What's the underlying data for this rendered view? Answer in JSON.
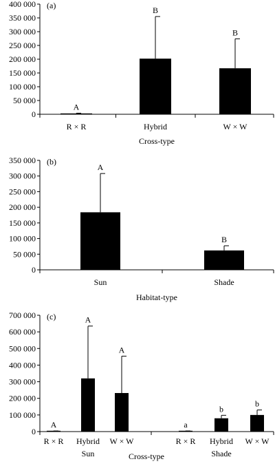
{
  "chart_data": [
    {
      "type": "bar",
      "panel_label": "(a)",
      "xlabel": "Cross-type",
      "ylim": [
        0,
        400000
      ],
      "yticks": [
        "0",
        "50 000",
        "100 000",
        "150 000",
        "200 000",
        "250 000",
        "300 000",
        "350 000",
        "400 000"
      ],
      "categories": [
        "R × R",
        "Hybrid",
        "W × W"
      ],
      "values": [
        3000,
        202000,
        167000
      ],
      "error": [
        1000,
        153000,
        107000
      ],
      "significance": [
        "A",
        "B",
        "B"
      ],
      "bar_color": "#000000"
    },
    {
      "type": "bar",
      "panel_label": "(b)",
      "xlabel": "Habitat-type",
      "ylim": [
        0,
        350000
      ],
      "yticks": [
        "0",
        "50 000",
        "100 000",
        "150 000",
        "200 000",
        "250 000",
        "300 000",
        "350 000"
      ],
      "categories": [
        "Sun",
        "Shade"
      ],
      "values": [
        184000,
        62000
      ],
      "error": [
        124000,
        15000
      ],
      "significance": [
        "A",
        "B"
      ],
      "bar_color": "#000000"
    },
    {
      "type": "bar",
      "panel_label": "(c)",
      "xlabel": "Cross-type",
      "ylim": [
        0,
        700000
      ],
      "yticks": [
        "0",
        "100 000",
        "200 000",
        "300 000",
        "400 000",
        "500 000",
        "600 000",
        "700 000"
      ],
      "groups": [
        "Sun",
        "Shade"
      ],
      "categories": [
        "R × R",
        "Hybrid",
        "W × W",
        "R × R",
        "Hybrid",
        "W × W"
      ],
      "values": [
        3000,
        320000,
        232000,
        3000,
        80000,
        100000
      ],
      "error": [
        1000,
        315000,
        222000,
        1000,
        18000,
        30000
      ],
      "significance": [
        "A",
        "A",
        "A",
        "a",
        "b",
        "b"
      ],
      "bar_color": "#000000"
    }
  ]
}
